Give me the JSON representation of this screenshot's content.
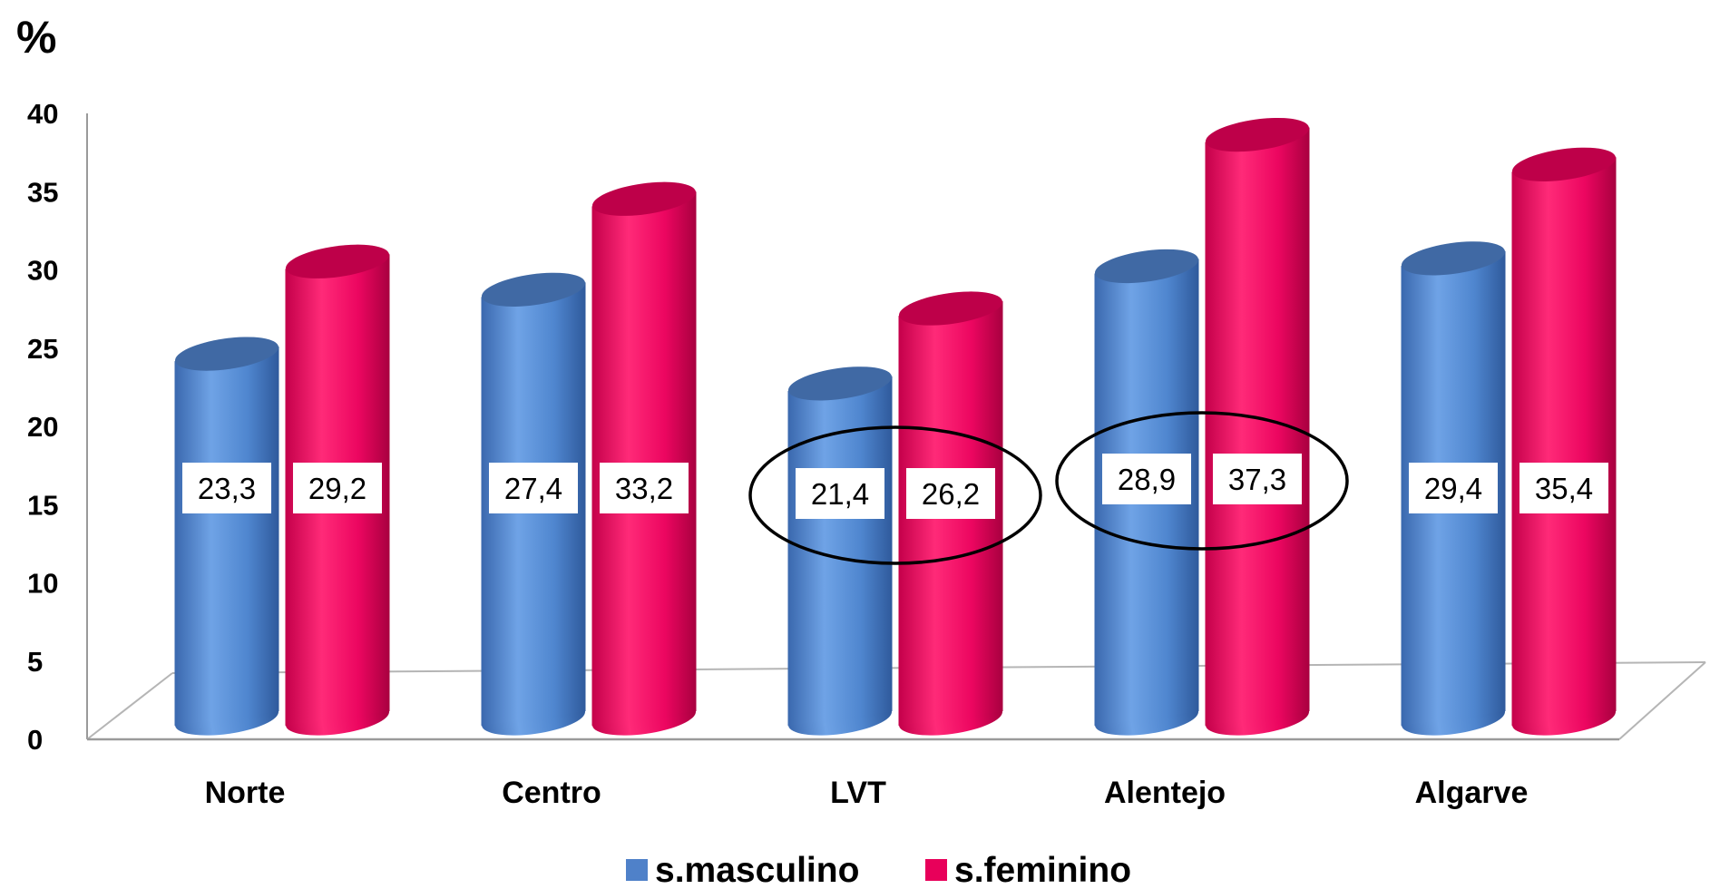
{
  "chart_data": {
    "type": "bar",
    "unit_label": "%",
    "categories": [
      "Norte",
      "Centro",
      "LVT",
      "Alentejo",
      "Algarve"
    ],
    "series": [
      {
        "name": "s.masculino",
        "color": "#4F81C9",
        "values": [
          23.3,
          27.4,
          21.4,
          28.9,
          29.4
        ],
        "labels": [
          "23,3",
          "27,4",
          "21,4",
          "28,9",
          "29,4"
        ]
      },
      {
        "name": "s.feminino",
        "color": "#E8005A",
        "values": [
          29.2,
          33.2,
          26.2,
          37.3,
          35.4
        ],
        "labels": [
          "29,2",
          "33,2",
          "26,2",
          "37,3",
          "35,4"
        ]
      }
    ],
    "ylim": [
      0,
      40
    ],
    "yticks": [
      "0",
      "5",
      "10",
      "15",
      "20",
      "25",
      "30",
      "35",
      "40"
    ],
    "highlighted_categories": [
      "LVT",
      "Alentejo"
    ],
    "style": "3d-cylinder",
    "grid": false,
    "legend_position": "bottom"
  }
}
